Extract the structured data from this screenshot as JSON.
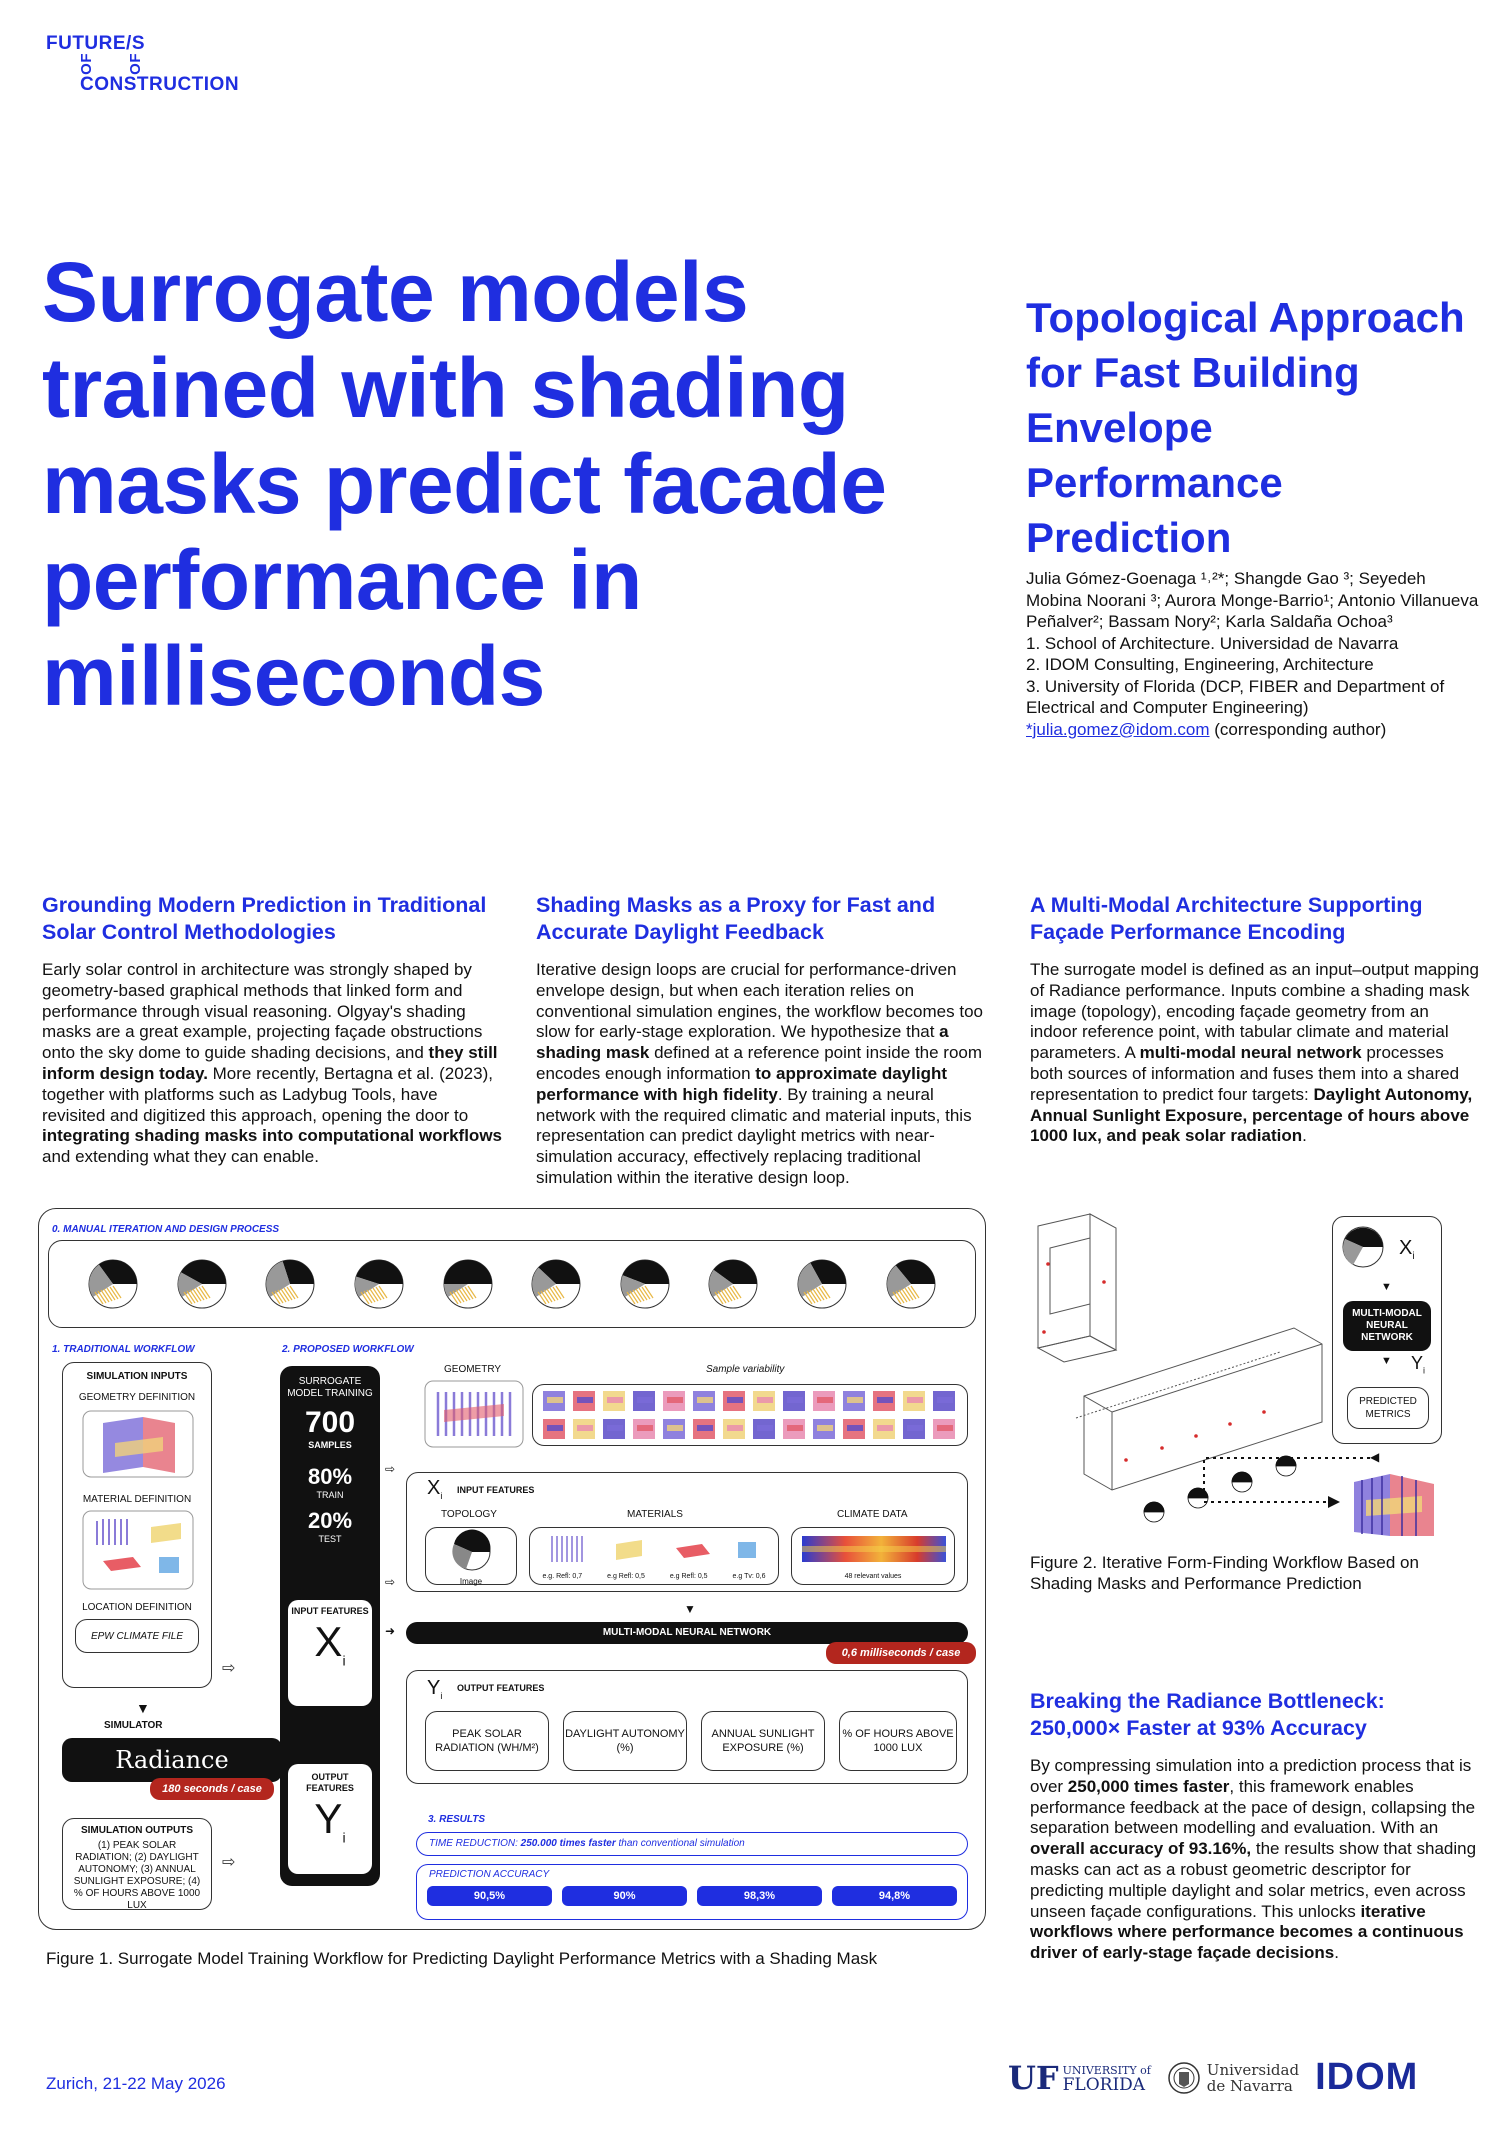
{
  "logo": {
    "line1": "FUTURE/S",
    "mid_left": "OF",
    "mid_right": "OF",
    "line3": "CONSTRUCTION"
  },
  "main_title": "Surrogate models trained with shading masks predict facade performance in milliseconds",
  "sub_title": "Topological Approach for Fast Building Envelope Performance Prediction",
  "authors": {
    "names": "Julia Gómez-Goenaga ¹˒²*; Shangde Gao ³; Seyedeh Mobina Noorani ³; Aurora Monge-Barrio¹; Antonio Villanueva Peñalver²; Bassam Nory²; Karla Saldaña Ochoa³",
    "aff1": "1. School of Architecture. Universidad de Navarra",
    "aff2": "2. IDOM Consulting, Engineering, Architecture",
    "aff3": "3. University of Florida (DCP, FIBER and Department of Electrical and Computer Engineering)",
    "email": "*julia.gomez@idom.com",
    "email_note": " (corresponding author)"
  },
  "sections": {
    "s1": {
      "title": "Grounding Modern Prediction in Traditional Solar Control Methodologies",
      "p1": "Early solar control in architecture was strongly shaped by geometry-based graphical methods that linked form and performance through visual reasoning. Olgyay's shading masks are a great example, projecting façade obstructions onto the sky dome to guide shading decisions, and ",
      "b1": "they still inform design today.",
      "p2": " More recently, Bertagna et al. (2023), together with platforms such as Ladybug Tools, have revisited and digitized this approach, opening the door to ",
      "b2": "integrating shading masks into computational workflows",
      "p3": " and extending what they can enable."
    },
    "s2": {
      "title": "Shading Masks as a Proxy for Fast and Accurate Daylight Feedback",
      "p1": "Iterative design loops are crucial for performance-driven envelope design, but when each iteration relies on conventional simulation engines, the workflow becomes too slow for early-stage exploration. We hypothesize that ",
      "b1": "a shading mask",
      "p2": " defined at a reference point inside the room encodes enough information ",
      "b2": "to approximate daylight performance with high fidelity",
      "p3": ". By training a neural network with the required climatic and material inputs, this representation can predict daylight metrics with near-simulation accuracy, effectively replacing traditional simulation within the iterative design loop."
    },
    "s3": {
      "title": "A Multi-Modal Architecture Supporting Façade Performance Encoding",
      "p1": "The surrogate model is defined as an input–output mapping of Radiance performance. Inputs combine a shading mask image (topology), encoding façade geometry from an indoor reference point, with tabular climate and material parameters. A ",
      "b1": "multi-modal neural network",
      "p2": " processes both sources of information and fuses them into a shared representation to predict four targets: ",
      "b2": "Daylight Autonomy, Annual Sunlight Exposure, percentage of hours above 1000 lux, and peak solar radiation",
      "p3": "."
    },
    "s4": {
      "title": "Breaking the Radiance Bottleneck: 250,000× Faster at 93% Accuracy",
      "p1": "By compressing simulation into a prediction process that is over ",
      "b1": "250,000 times faster",
      "p2": ", this framework enables performance feedback at the pace of design, collapsing the separation between modelling and evaluation. With an ",
      "b2": "overall accuracy of 93.16%,",
      "p3": " the results show that shading masks can act as a robust geometric descriptor for predicting multiple daylight and solar metrics, even across unseen façade configurations. This unlocks ",
      "b3": "iterative workflows where performance becomes a continuous driver of early-stage façade decisions",
      "p4": "."
    }
  },
  "figure1": {
    "manual_heading": "0. MANUAL ITERATION AND DESIGN PROCESS",
    "traditional_heading": "1. TRADITIONAL WORKFLOW",
    "proposed_heading": "2. PROPOSED WORKFLOW",
    "sim_inputs": "SIMULATION INPUTS",
    "geometry_def": "GEOMETRY DEFINITION",
    "material_def": "MATERIAL DEFINITION",
    "location_def": "LOCATION DEFINITION",
    "epw": "EPW CLIMATE FILE",
    "simulator": "SIMULATOR",
    "radiance": "Radiance",
    "sim_time": "180 seconds / case",
    "sim_outputs": "SIMULATION OUTPUTS",
    "sim_outputs_list": "(1) PEAK SOLAR RADIATION; (2) DAYLIGHT AUTONOMY; (3) ANNUAL SUNLIGHT EXPOSURE; (4) % OF HOURS ABOVE 1000 LUX",
    "surrogate_label": "SURROGATE MODEL TRAINING",
    "samples_num": "700",
    "samples_label": "SAMPLES",
    "train_pct": "80%",
    "train_label": "TRAIN",
    "test_pct": "20%",
    "test_label": "TEST",
    "input_features": "INPUT FEATURES",
    "output_features": "OUTPUT FEATURES",
    "x_sym": "X",
    "y_sym": "Y",
    "sub_i": "i",
    "geometry": "GEOMETRY",
    "sample_var": "Sample variability",
    "input_features_h": "INPUT FEATURES",
    "topology": "TOPOLOGY",
    "materials": "MATERIALS",
    "climate": "CLIMATE DATA",
    "image_lbl": "Image",
    "refl1": "e.g. Refl: 0,7",
    "refl2": "e.g Refl: 0,5",
    "refl3": "e.g Refl: 0,5",
    "tv": "e.g Tv: 0,6",
    "relevant": "48 relevant values",
    "nn": "MULTI-MODAL NEURAL NETWORK",
    "nn_time": "0,6 milliseconds / case",
    "output_features_h": "OUTPUT FEATURES",
    "out1": "PEAK SOLAR RADIATION (Wh/m²)",
    "out2": "DAYLIGHT AUTONOMY (%)",
    "out3": "ANNUAL SUNLIGHT EXPOSURE (%)",
    "out4": "% OF HOURS ABOVE 1000 LUX",
    "results_h": "3. RESULTS",
    "time_red_label": "TIME REDUCTION: ",
    "time_red_bold": "250.000 times faster",
    "time_red_rest": " than conventional simulation",
    "pred_acc": "PREDICTION ACCURACY",
    "acc": [
      "90,5%",
      "90%",
      "98,3%",
      "94,8%"
    ],
    "caption": "Figure 1. Surrogate Model Training Workflow for Predicting Daylight Performance Metrics with a Shading Mask"
  },
  "figure2": {
    "x_sym": "X",
    "y_sym": "Y",
    "sub_i": "i",
    "nn": "MULTI-MODAL NEURAL NETWORK",
    "predicted": "PREDICTED METRICS",
    "caption": "Figure 2. Iterative Form-Finding Workflow Based on Shading Masks and Performance Prediction"
  },
  "footer": {
    "date": "Zurich, 21-22 May 2026",
    "uf_mark": "UF",
    "uf_text1": "UNIVERSITY of",
    "uf_text2": "FLORIDA",
    "unav1": "Universidad",
    "unav2": "de Navarra",
    "idom": "IDOM"
  },
  "colors": {
    "accent": "#1f2ee0",
    "badge": "#b3261e",
    "dark": "#111111"
  }
}
